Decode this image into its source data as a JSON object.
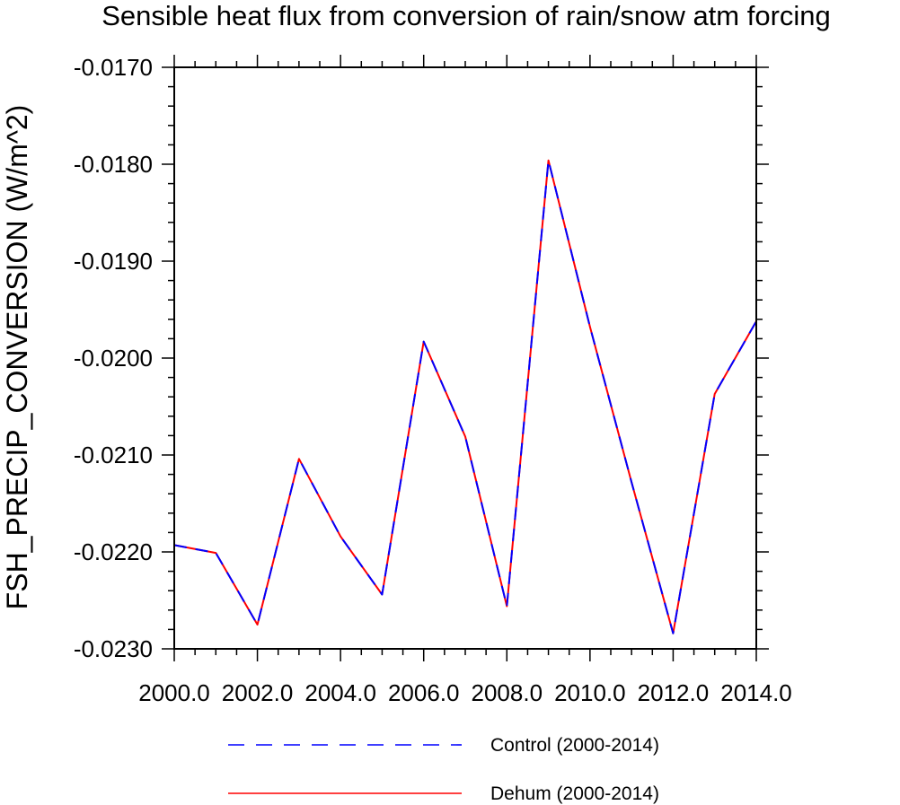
{
  "chart_data": {
    "type": "line",
    "title": "Sensible heat flux from conversion of rain/snow atm forcing",
    "xlabel": "",
    "ylabel": "FSH_PRECIP_CONVERSION  (W/m^2)",
    "xlim": [
      2000,
      2014
    ],
    "ylim": [
      -0.023,
      -0.017
    ],
    "x_ticks": [
      "2000.0",
      "2002.0",
      "2004.0",
      "2006.0",
      "2008.0",
      "2010.0",
      "2012.0",
      "2014.0"
    ],
    "y_ticks": [
      "-0.0170",
      "-0.0180",
      "-0.0190",
      "-0.0200",
      "-0.0210",
      "-0.0220",
      "-0.0230"
    ],
    "grid": false,
    "legend_position": "bottom",
    "x": [
      2000,
      2001,
      2002,
      2003,
      2004,
      2005,
      2006,
      2007,
      2008,
      2009,
      2010,
      2011,
      2012,
      2013,
      2014
    ],
    "series": [
      {
        "name": "Control (2000-2014)",
        "color": "#0000ff",
        "dash": "dashed",
        "values": [
          -0.02193,
          -0.02201,
          -0.02275,
          -0.02104,
          -0.02184,
          -0.02244,
          -0.01983,
          -0.02081,
          -0.02256,
          -0.01796,
          -0.01968,
          -0.02128,
          -0.02284,
          -0.02037,
          -0.01962
        ]
      },
      {
        "name": "Dehum (2000-2014)",
        "color": "#ff0000",
        "dash": "solid",
        "values": [
          -0.02193,
          -0.02201,
          -0.02275,
          -0.02104,
          -0.02184,
          -0.02244,
          -0.01983,
          -0.02081,
          -0.02256,
          -0.01796,
          -0.01968,
          -0.02128,
          -0.02284,
          -0.02037,
          -0.01962
        ]
      }
    ]
  }
}
